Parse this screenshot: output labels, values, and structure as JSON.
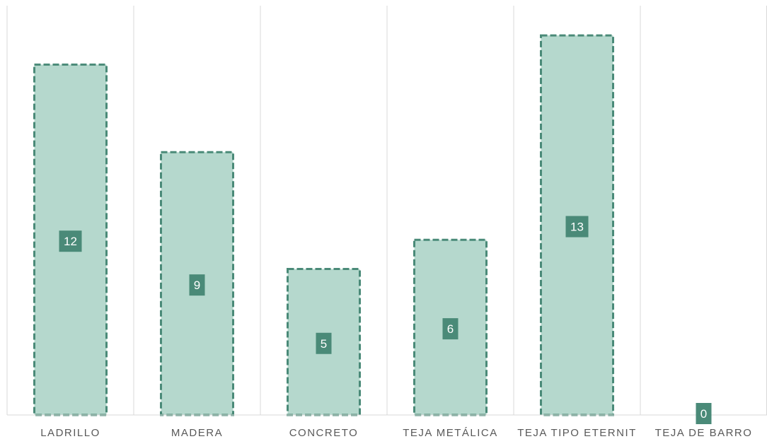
{
  "chart_data": {
    "type": "bar",
    "categories": [
      "LADRILLO",
      "MADERA",
      "CONCRETO",
      "TEJA METÁLICA",
      "TEJA TIPO ETERNIT",
      "TEJA DE BARRO"
    ],
    "values": [
      12,
      9,
      5,
      6,
      13,
      0
    ],
    "title": "",
    "xlabel": "",
    "ylabel": "",
    "ylim": [
      0,
      14
    ],
    "grid": "vertical category separators",
    "legend": "none",
    "data_labels": true,
    "colors": {
      "bar_fill": "#b5d8cd",
      "bar_border": "#4a8a78",
      "label_box": "#4a8a78",
      "label_text": "#ffffff",
      "axis": "#d9d9d9",
      "category_text": "#595959"
    }
  }
}
